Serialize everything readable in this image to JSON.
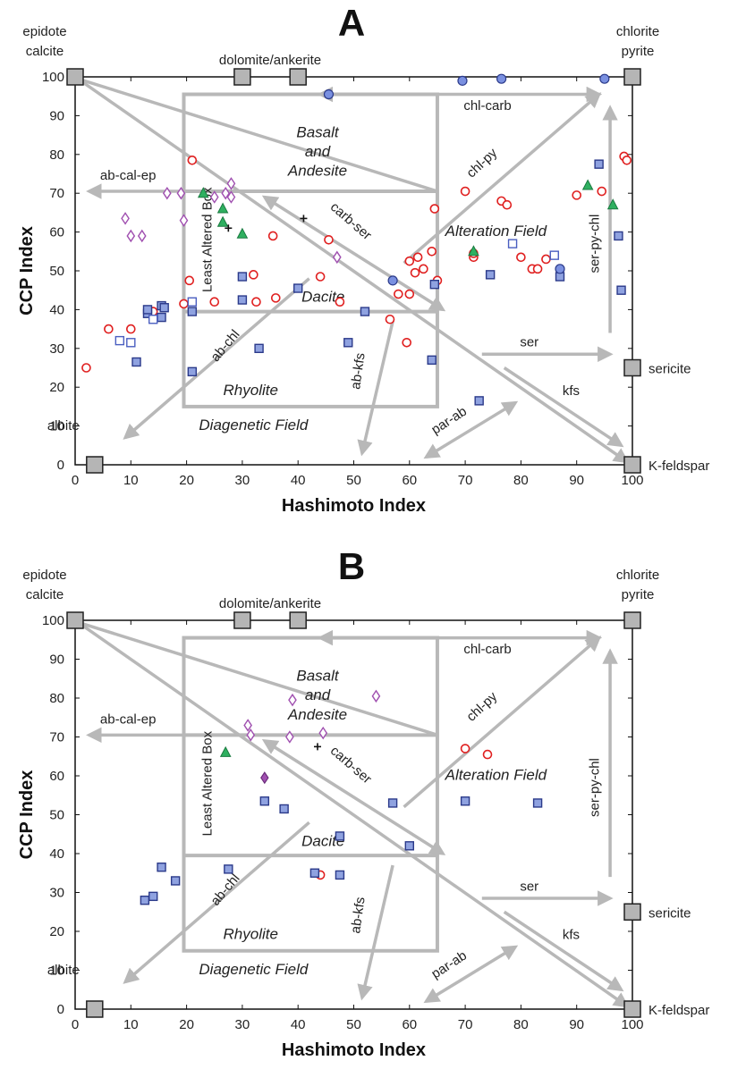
{
  "chart_data": [
    {
      "type": "scatter",
      "panel": "A",
      "xlabel": "Hashimoto Index",
      "ylabel": "CCP Index",
      "xlim": [
        0,
        100
      ],
      "ylim": [
        0,
        100
      ],
      "ticks": [
        "0",
        "10",
        "20",
        "30",
        "40",
        "50",
        "60",
        "70",
        "80",
        "90",
        "100"
      ],
      "endmembers": [
        {
          "label": "epidote calcite",
          "x": 0,
          "y": 100
        },
        {
          "label": "dolomite/ankerite",
          "x": 30,
          "y": 100
        },
        {
          "label": "dolomite/ankerite",
          "x": 40,
          "y": 100
        },
        {
          "label": "chlorite pyrite",
          "x": 100,
          "y": 100
        },
        {
          "label": "sericite",
          "x": 100,
          "y": 25
        },
        {
          "label": "K-feldspar",
          "x": 100,
          "y": 0
        },
        {
          "label": "albite",
          "x": 3.5,
          "y": 0
        }
      ],
      "field_labels": [
        "Basalt and Andesite",
        "Alteration Field",
        "Dacite",
        "Rhyolite",
        "Diagenetic Field",
        "Least Altered Box"
      ],
      "vector_labels": [
        "chl-carb",
        "chl-py",
        "ab-cal-ep",
        "carb-ser",
        "ser-py-chl",
        "ab-chl",
        "ab-kfs",
        "ser",
        "kfs",
        "par-ab"
      ],
      "series": [
        {
          "marker": "circle-open-red",
          "color": "#e02020",
          "points": [
            [
              2,
              25
            ],
            [
              6,
              35
            ],
            [
              10,
              35
            ],
            [
              14,
              39.5
            ],
            [
              19.5,
              41.5
            ],
            [
              21,
              78.5
            ],
            [
              20.5,
              47.5
            ],
            [
              25,
              42
            ],
            [
              32,
              49
            ],
            [
              32.5,
              42
            ],
            [
              35.5,
              59
            ],
            [
              36,
              43
            ],
            [
              44,
              48.5
            ],
            [
              45.5,
              58
            ],
            [
              47.5,
              42
            ],
            [
              56.5,
              37.5
            ],
            [
              58,
              44
            ],
            [
              59.5,
              31.5
            ],
            [
              60,
              44
            ],
            [
              60,
              52.5
            ],
            [
              61,
              49.5
            ],
            [
              61.5,
              53.5
            ],
            [
              62.5,
              50.5
            ],
            [
              64,
              55
            ],
            [
              65,
              47.5
            ],
            [
              64.5,
              66
            ],
            [
              70,
              70.5
            ],
            [
              71.5,
              53.5
            ],
            [
              71.5,
              54.5
            ],
            [
              76.5,
              68
            ],
            [
              77.5,
              67
            ],
            [
              80,
              53.5
            ],
            [
              82,
              50.5
            ],
            [
              83,
              50.5
            ],
            [
              84.5,
              53
            ],
            [
              90,
              69.5
            ],
            [
              94.5,
              70.5
            ],
            [
              98.5,
              79.5
            ],
            [
              99,
              78.5
            ]
          ]
        },
        {
          "marker": "square-filled-blue",
          "color": "#4a5ec0",
          "points": [
            [
              11,
              26.5
            ],
            [
              13,
              39
            ],
            [
              13,
              40
            ],
            [
              15.5,
              38
            ],
            [
              15.5,
              41
            ],
            [
              16,
              40.5
            ],
            [
              21,
              39.5
            ],
            [
              21,
              24
            ],
            [
              30,
              48.5
            ],
            [
              30,
              42.5
            ],
            [
              33,
              30
            ],
            [
              40,
              45.5
            ],
            [
              52,
              39.5
            ],
            [
              49,
              31.5
            ],
            [
              64,
              27
            ],
            [
              64.5,
              46.5
            ],
            [
              72.5,
              16.5
            ],
            [
              74.5,
              49
            ],
            [
              87,
              48.5
            ],
            [
              94,
              77.5
            ],
            [
              97.5,
              59
            ],
            [
              98,
              45
            ]
          ]
        },
        {
          "marker": "square-open-blue",
          "color": "#4a5ec0",
          "points": [
            [
              8,
              32
            ],
            [
              10,
              31.5
            ],
            [
              14,
              37.5
            ],
            [
              21,
              42
            ],
            [
              78.5,
              57
            ],
            [
              86,
              54
            ]
          ]
        },
        {
          "marker": "circle-filled-blue",
          "color": "#7a90e0",
          "points": [
            [
              45.5,
              95.5
            ],
            [
              57,
              47.5
            ],
            [
              69.5,
              99
            ],
            [
              76.5,
              99.5
            ],
            [
              95,
              99.5
            ],
            [
              87,
              50.5
            ]
          ]
        },
        {
          "marker": "triangle-filled-green",
          "color": "#2fb060",
          "points": [
            [
              23,
              70
            ],
            [
              26.5,
              66
            ],
            [
              26.5,
              62.5
            ],
            [
              30,
              59.5
            ],
            [
              71.5,
              55
            ],
            [
              92,
              72
            ],
            [
              96.5,
              67
            ]
          ]
        },
        {
          "marker": "diamond-open-purple",
          "color": "#a050b0",
          "points": [
            [
              9,
              63.5
            ],
            [
              10,
              59
            ],
            [
              12,
              59
            ],
            [
              16.5,
              70
            ],
            [
              19,
              70
            ],
            [
              19.5,
              63
            ],
            [
              25,
              69
            ],
            [
              27,
              70
            ],
            [
              28,
              69
            ],
            [
              28,
              72.5
            ],
            [
              47,
              53.5
            ]
          ]
        },
        {
          "marker": "plus-black",
          "color": "#111111",
          "points": [
            [
              27.5,
              61
            ],
            [
              41,
              63.5
            ]
          ]
        }
      ]
    },
    {
      "type": "scatter",
      "panel": "B",
      "xlabel": "Hashimoto Index",
      "ylabel": "CCP Index",
      "xlim": [
        0,
        100
      ],
      "ylim": [
        0,
        100
      ],
      "ticks": [
        "0",
        "10",
        "20",
        "30",
        "40",
        "50",
        "60",
        "70",
        "80",
        "90",
        "100"
      ],
      "endmembers": [
        {
          "label": "epidote calcite",
          "x": 0,
          "y": 100
        },
        {
          "label": "dolomite/ankerite",
          "x": 30,
          "y": 100
        },
        {
          "label": "dolomite/ankerite",
          "x": 40,
          "y": 100
        },
        {
          "label": "chlorite pyrite",
          "x": 100,
          "y": 100
        },
        {
          "label": "sericite",
          "x": 100,
          "y": 25
        },
        {
          "label": "K-feldspar",
          "x": 100,
          "y": 0
        },
        {
          "label": "albite",
          "x": 3.5,
          "y": 0
        }
      ],
      "field_labels": [
        "Basalt and Andesite",
        "Alteration Field",
        "Dacite",
        "Rhyolite",
        "Diagenetic Field",
        "Least Altered Box"
      ],
      "vector_labels": [
        "chl-carb",
        "chl-py",
        "ab-cal-ep",
        "carb-ser",
        "ser-py-chl",
        "ab-chl",
        "ab-kfs",
        "ser",
        "kfs",
        "par-ab"
      ],
      "series": [
        {
          "marker": "circle-open-red",
          "color": "#e02020",
          "points": [
            [
              44,
              34.5
            ],
            [
              70,
              67
            ],
            [
              74,
              65.5
            ]
          ]
        },
        {
          "marker": "square-filled-blue",
          "color": "#4a5ec0",
          "points": [
            [
              12.5,
              28
            ],
            [
              14,
              29
            ],
            [
              15.5,
              36.5
            ],
            [
              18,
              33
            ],
            [
              27.5,
              36
            ],
            [
              34,
              53.5
            ],
            [
              37.5,
              51.5
            ],
            [
              43,
              35
            ],
            [
              47.5,
              44.5
            ],
            [
              47.5,
              34.5
            ],
            [
              57,
              53
            ],
            [
              60,
              42
            ],
            [
              70,
              53.5
            ],
            [
              83,
              53
            ]
          ]
        },
        {
          "marker": "triangle-filled-green",
          "color": "#2fb060",
          "points": [
            [
              27,
              66
            ]
          ]
        },
        {
          "marker": "diamond-open-purple",
          "color": "#a050b0",
          "points": [
            [
              31,
              73
            ],
            [
              31.5,
              70.5
            ],
            [
              38.5,
              70
            ],
            [
              39,
              79.5
            ],
            [
              44.5,
              71
            ],
            [
              54,
              80.5
            ]
          ]
        },
        {
          "marker": "diamond-filled-purple",
          "color": "#a050b0",
          "points": [
            [
              34,
              59.5
            ]
          ]
        },
        {
          "marker": "plus-black",
          "color": "#111111",
          "points": [
            [
              43.5,
              67.5
            ]
          ]
        }
      ]
    }
  ]
}
